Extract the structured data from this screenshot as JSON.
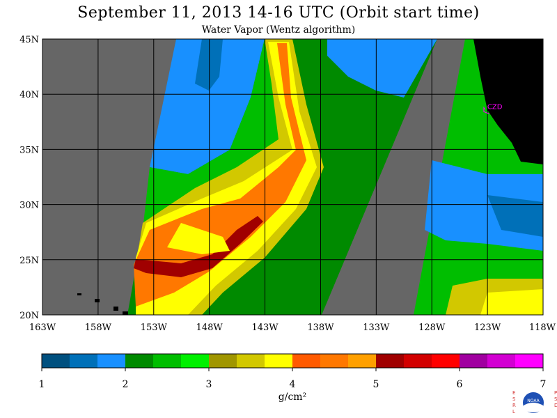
{
  "title": "September 11, 2013  14-16 UTC  (Orbit start time)",
  "subtitle": "Water Vapor (Wentz algorithm)",
  "map": {
    "lat_range": [
      20,
      45
    ],
    "lon_range": [
      -163,
      -118
    ],
    "lat_labels": [
      "20N",
      "25N",
      "30N",
      "35N",
      "40N",
      "45N"
    ],
    "lon_labels": [
      "163W",
      "158W",
      "153W",
      "148W",
      "143W",
      "138W",
      "133W",
      "128W",
      "123W",
      "118W"
    ],
    "station": {
      "label": "CZD",
      "lat": 38.6,
      "lon": -123.2,
      "color": "#ff00ff"
    },
    "no_data_color": "#666666",
    "land_color": "#000000"
  },
  "colorbar": {
    "units": "g/cm²",
    "tick_labels": [
      "1",
      "2",
      "3",
      "4",
      "5",
      "6",
      "7"
    ],
    "range": [
      1,
      7
    ],
    "colors": [
      "#00507f",
      "#0070b8",
      "#1890ff",
      "#008a00",
      "#00be00",
      "#00f000",
      "#a09600",
      "#d2c800",
      "#ffff00",
      "#ff5a00",
      "#ff7800",
      "#ffa000",
      "#a00000",
      "#d20000",
      "#ff0000",
      "#a000a0",
      "#d200d2",
      "#ff00ff"
    ]
  },
  "logo": {
    "left_text": "ESRL",
    "right_text": "PSD",
    "center_text": "NOAA"
  }
}
